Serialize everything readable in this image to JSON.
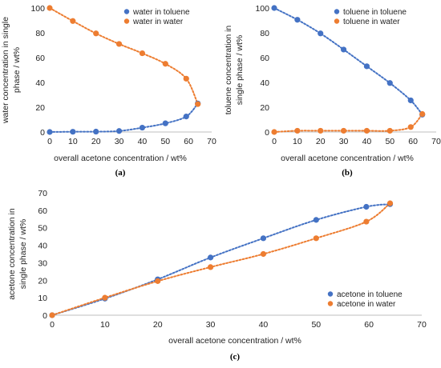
{
  "chart_data": [
    {
      "id": "a",
      "type": "scatter",
      "panel_label": "(a)",
      "xlabel": "overall acetone concentration / wt%",
      "ylabel": "water concentration in single phase / wt%",
      "ylabel_lines": [
        "water concentration in single",
        "phase / wt%"
      ],
      "xlim": [
        0,
        70
      ],
      "ylim": [
        0,
        100
      ],
      "xticks": [
        0,
        10,
        20,
        30,
        40,
        50,
        60,
        70
      ],
      "yticks": [
        0,
        20,
        40,
        60,
        80,
        100
      ],
      "grid": false,
      "legend_position": "top-right",
      "series": [
        {
          "name": "water in toluene",
          "color": "#4472C4",
          "x": [
            0,
            10,
            20,
            30,
            40,
            50,
            59,
            64
          ],
          "y": [
            0,
            0.2,
            0.3,
            0.8,
            3.5,
            7,
            12.5,
            23
          ]
        },
        {
          "name": "water in water",
          "color": "#ED7D31",
          "x": [
            0,
            10,
            20,
            30,
            40,
            50,
            59,
            64
          ],
          "y": [
            100,
            89.5,
            79.5,
            71,
            63.5,
            55,
            43,
            22.5
          ]
        }
      ]
    },
    {
      "id": "b",
      "type": "scatter",
      "panel_label": "(b)",
      "xlabel": "overall acetone concentration / wt%",
      "ylabel": "toluene concentration in single phase / wt%",
      "ylabel_lines": [
        "toluene concentration in",
        "single phase / wt%"
      ],
      "xlim": [
        0,
        70
      ],
      "ylim": [
        0,
        100
      ],
      "xticks": [
        0,
        10,
        20,
        30,
        40,
        50,
        60,
        70
      ],
      "yticks": [
        0,
        20,
        40,
        60,
        80,
        100
      ],
      "grid": false,
      "legend_position": "top-right",
      "series": [
        {
          "name": "toluene in toluene",
          "color": "#4472C4",
          "x": [
            0,
            10,
            20,
            30,
            40,
            50,
            59,
            64
          ],
          "y": [
            100,
            90.5,
            79.5,
            66.5,
            53,
            39.5,
            25.5,
            14
          ]
        },
        {
          "name": "toluene in water",
          "color": "#ED7D31",
          "x": [
            0,
            10,
            20,
            30,
            40,
            50,
            59,
            64
          ],
          "y": [
            0,
            1,
            1,
            1,
            1,
            1,
            4,
            14.5
          ]
        }
      ]
    },
    {
      "id": "c",
      "type": "scatter",
      "panel_label": "(c)",
      "xlabel": "overall acetone concentration / wt%",
      "ylabel": "acetone concentration in single phase / wt%",
      "ylabel_lines": [
        "acetone concentration in",
        "single phase / wt%"
      ],
      "xlim": [
        0,
        70
      ],
      "ylim": [
        0,
        70
      ],
      "xticks": [
        0,
        10,
        20,
        30,
        40,
        50,
        60,
        70
      ],
      "yticks": [
        0,
        10,
        20,
        30,
        40,
        50,
        60,
        70
      ],
      "grid": false,
      "legend_position": "bottom-right",
      "series": [
        {
          "name": "acetone in toluene",
          "color": "#4472C4",
          "x": [
            0,
            10,
            20,
            30,
            40,
            50,
            59.5,
            64
          ],
          "y": [
            0,
            9.5,
            20.5,
            33,
            44,
            54.5,
            62,
            63.5
          ]
        },
        {
          "name": "acetone in water",
          "color": "#ED7D31",
          "x": [
            0,
            10,
            20,
            30,
            40,
            50,
            59.5,
            64
          ],
          "y": [
            0,
            10,
            19.5,
            27.5,
            35,
            44,
            53.5,
            64
          ]
        }
      ]
    }
  ]
}
